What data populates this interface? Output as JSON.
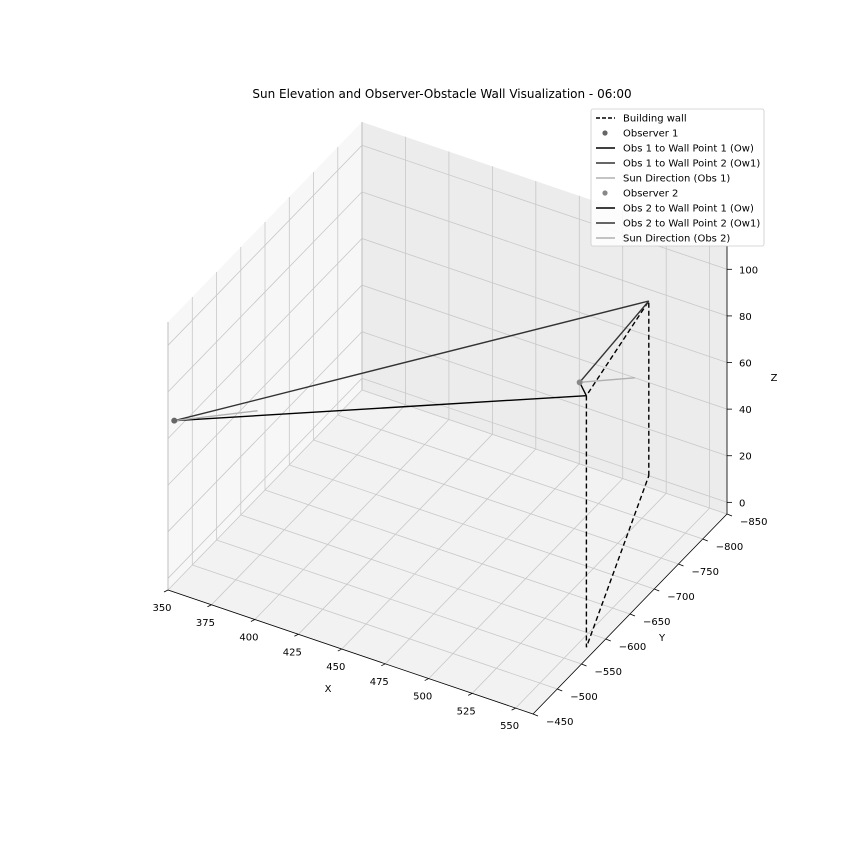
{
  "chart_data": {
    "type": "line3d",
    "title": "Sun Elevation and Observer-Obstacle Wall Visualization - 06:00",
    "xlabel": "X",
    "ylabel": "Y",
    "zlabel": "Z",
    "x_ticks": [
      350,
      375,
      400,
      425,
      450,
      475,
      500,
      525,
      550
    ],
    "y_ticks": [
      -450,
      -500,
      -550,
      -600,
      -650,
      -700,
      -750,
      -800,
      -850
    ],
    "z_ticks": [
      0,
      20,
      40,
      60,
      80,
      100
    ],
    "grid": true,
    "legend_position": "top-right",
    "legend": [
      {
        "label": "Building wall",
        "style": "dashed-line",
        "color": "#000000"
      },
      {
        "label": "Observer 1",
        "style": "marker",
        "color": "#666666"
      },
      {
        "label": "Obs 1 to Wall Point 1 (Ow)",
        "style": "line",
        "color": "#000000"
      },
      {
        "label": "Obs 1 to Wall Point 2 (Ow1)",
        "style": "line",
        "color": "#333333"
      },
      {
        "label": "Sun Direction (Obs 1)",
        "style": "line",
        "color": "#b0b0b0"
      },
      {
        "label": "Observer 2",
        "style": "marker",
        "color": "#888888"
      },
      {
        "label": "Obs 2 to Wall Point 1 (Ow)",
        "style": "line",
        "color": "#000000"
      },
      {
        "label": "Obs 2 to Wall Point 2 (Ow1)",
        "style": "line",
        "color": "#333333"
      },
      {
        "label": "Sun Direction (Obs 2)",
        "style": "line",
        "color": "#b0b0b0"
      }
    ],
    "series": [
      {
        "kind": "wall",
        "color": "#000000",
        "dashed": true,
        "points": [
          [
            515,
            -850,
            0
          ],
          [
            515,
            -850,
            75
          ],
          [
            560,
            -560,
            108
          ],
          [
            560,
            -560,
            0
          ],
          [
            515,
            -850,
            0
          ]
        ]
      },
      {
        "kind": "observer",
        "color": "#666666",
        "point": [
          355,
          -445,
          70
        ]
      },
      {
        "kind": "observer",
        "color": "#888888",
        "point": [
          485,
          -815,
          40
        ]
      },
      {
        "kind": "segment",
        "color": "#000000",
        "from": [
          355,
          -445,
          70
        ],
        "to": [
          560,
          -560,
          108
        ]
      },
      {
        "kind": "segment",
        "color": "#333333",
        "from": [
          355,
          -445,
          70
        ],
        "to": [
          515,
          -850,
          75
        ]
      },
      {
        "kind": "segment",
        "color": "#b0b0b0",
        "from": [
          355,
          -445,
          70
        ],
        "to": [
          382,
          -520,
          65
        ]
      },
      {
        "kind": "segment",
        "color": "#000000",
        "from": [
          485,
          -815,
          40
        ],
        "to": [
          560,
          -560,
          108
        ]
      },
      {
        "kind": "segment",
        "color": "#333333",
        "from": [
          485,
          -815,
          40
        ],
        "to": [
          515,
          -850,
          75
        ]
      },
      {
        "kind": "segment",
        "color": "#b0b0b0",
        "from": [
          485,
          -815,
          40
        ],
        "to": [
          507,
          -850,
          40
        ]
      }
    ]
  }
}
